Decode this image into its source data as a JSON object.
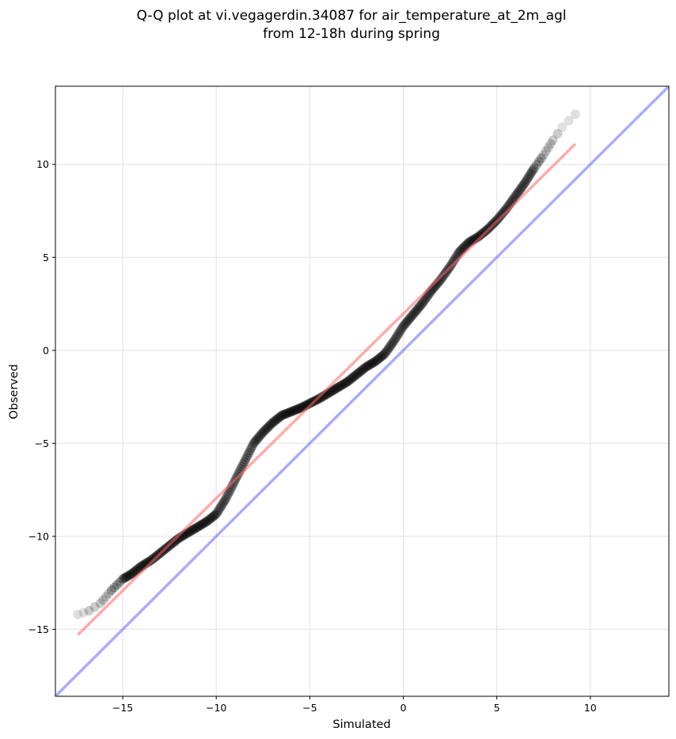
{
  "chart_data": {
    "type": "scatter",
    "title_line1": "Q-Q plot at vi.vegagerdin.34087 for air_temperature_at_2m_agl",
    "title_line2": "from 12-18h during spring",
    "xlabel": "Simulated",
    "ylabel": "Observed",
    "xlim": [
      -18.6,
      14.2
    ],
    "ylim": [
      -18.6,
      14.2
    ],
    "xticks": [
      -15,
      -10,
      -5,
      0,
      5,
      10
    ],
    "yticks": [
      -15,
      -10,
      -5,
      0,
      5,
      10
    ],
    "xtick_labels": [
      "−15",
      "−10",
      "−5",
      "0",
      "5",
      "10"
    ],
    "ytick_labels": [
      "−15",
      "−10",
      "−5",
      "0",
      "5",
      "10"
    ],
    "grid": true,
    "colors": {
      "points": "#000000",
      "fit_line": "#ff6666",
      "identity_line": "#6666ff",
      "grid": "#e6e6e6"
    },
    "fit_line": {
      "x": [
        -17.4,
        9.2
      ],
      "y": [
        -15.3,
        11.1
      ]
    },
    "identity_line": {
      "x": [
        -18.6,
        14.2
      ],
      "y": [
        -18.6,
        14.2
      ]
    },
    "quantile_curve": [
      [
        -17.4,
        -14.2
      ],
      [
        -16.8,
        -14.0
      ],
      [
        -16.2,
        -13.6
      ],
      [
        -15.6,
        -12.9
      ],
      [
        -15.0,
        -12.3
      ],
      [
        -14.5,
        -12.0
      ],
      [
        -14.0,
        -11.6
      ],
      [
        -13.5,
        -11.3
      ],
      [
        -13.0,
        -10.9
      ],
      [
        -12.5,
        -10.5
      ],
      [
        -12.0,
        -10.1
      ],
      [
        -11.5,
        -9.8
      ],
      [
        -11.0,
        -9.5
      ],
      [
        -10.5,
        -9.2
      ],
      [
        -10.0,
        -8.8
      ],
      [
        -9.5,
        -8.0
      ],
      [
        -9.0,
        -7.0
      ],
      [
        -8.5,
        -6.0
      ],
      [
        -8.0,
        -5.0
      ],
      [
        -7.5,
        -4.4
      ],
      [
        -7.0,
        -3.9
      ],
      [
        -6.5,
        -3.5
      ],
      [
        -6.0,
        -3.3
      ],
      [
        -5.5,
        -3.1
      ],
      [
        -5.0,
        -2.85
      ],
      [
        -4.5,
        -2.6
      ],
      [
        -4.0,
        -2.3
      ],
      [
        -3.5,
        -2.0
      ],
      [
        -3.0,
        -1.7
      ],
      [
        -2.5,
        -1.3
      ],
      [
        -2.0,
        -0.9
      ],
      [
        -1.5,
        -0.6
      ],
      [
        -1.0,
        -0.2
      ],
      [
        -0.5,
        0.5
      ],
      [
        0.0,
        1.3
      ],
      [
        0.5,
        1.9
      ],
      [
        1.0,
        2.5
      ],
      [
        1.5,
        3.2
      ],
      [
        2.0,
        3.8
      ],
      [
        2.5,
        4.5
      ],
      [
        3.0,
        5.3
      ],
      [
        3.5,
        5.8
      ],
      [
        4.0,
        6.1
      ],
      [
        4.5,
        6.5
      ],
      [
        5.0,
        7.0
      ],
      [
        5.5,
        7.6
      ],
      [
        6.0,
        8.3
      ],
      [
        6.5,
        9.0
      ],
      [
        7.0,
        9.8
      ],
      [
        7.5,
        10.5
      ],
      [
        8.0,
        11.3
      ],
      [
        8.5,
        12.0
      ],
      [
        9.2,
        12.7
      ]
    ]
  }
}
